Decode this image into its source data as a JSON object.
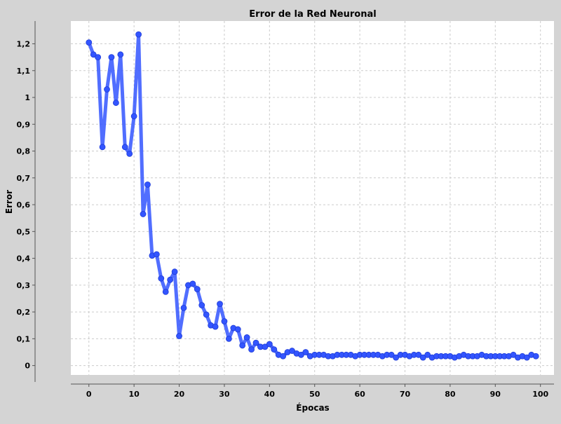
{
  "chart_data": {
    "type": "line",
    "title": "Error de la Red Neuronal",
    "xlabel": "Épocas",
    "ylabel": "Error",
    "xlim": [
      -4,
      103
    ],
    "ylim": [
      -0.035,
      1.285
    ],
    "xticks": [
      0,
      10,
      20,
      30,
      40,
      50,
      60,
      70,
      80,
      90,
      100
    ],
    "xtick_labels": [
      "0",
      "10",
      "20",
      "30",
      "40",
      "50",
      "60",
      "70",
      "80",
      "90",
      "100"
    ],
    "yticks": [
      0,
      0.1,
      0.2,
      0.3,
      0.4,
      0.5,
      0.6,
      0.7,
      0.8,
      0.9,
      1.0,
      1.1,
      1.2
    ],
    "ytick_labels": [
      "0",
      "0,1",
      "0,2",
      "0,3",
      "0,4",
      "0,5",
      "0,6",
      "0,7",
      "0,8",
      "0,9",
      "1",
      "1,1",
      "1,2"
    ],
    "grid": true,
    "series": [
      {
        "color": "#3355ff",
        "x": [
          0,
          1,
          2,
          3,
          4,
          5,
          6,
          7,
          8,
          9,
          10,
          11,
          12,
          13,
          14,
          15,
          16,
          17,
          18,
          19,
          20,
          21,
          22,
          23,
          24,
          25,
          26,
          27,
          28,
          29,
          30,
          31,
          32,
          33,
          34,
          35,
          36,
          37,
          38,
          39,
          40,
          41,
          42,
          43,
          44,
          45,
          46,
          47,
          48,
          49,
          50,
          51,
          52,
          53,
          54,
          55,
          56,
          57,
          58,
          59,
          60,
          61,
          62,
          63,
          64,
          65,
          66,
          67,
          68,
          69,
          70,
          71,
          72,
          73,
          74,
          75,
          76,
          77,
          78,
          79,
          80,
          81,
          82,
          83,
          84,
          85,
          86,
          87,
          88,
          89,
          90,
          91,
          92,
          93,
          94,
          95,
          96,
          97,
          98,
          99
        ],
        "values": [
          1.205,
          1.16,
          1.15,
          0.815,
          1.03,
          1.15,
          0.98,
          1.16,
          0.815,
          0.79,
          0.93,
          1.235,
          0.565,
          0.675,
          0.41,
          0.415,
          0.325,
          0.275,
          0.32,
          0.35,
          0.11,
          0.215,
          0.3,
          0.305,
          0.285,
          0.225,
          0.19,
          0.15,
          0.145,
          0.23,
          0.165,
          0.1,
          0.14,
          0.135,
          0.075,
          0.105,
          0.06,
          0.085,
          0.07,
          0.07,
          0.08,
          0.06,
          0.04,
          0.035,
          0.05,
          0.055,
          0.045,
          0.04,
          0.05,
          0.035,
          0.04,
          0.04,
          0.04,
          0.035,
          0.035,
          0.04,
          0.04,
          0.04,
          0.04,
          0.035,
          0.04,
          0.04,
          0.04,
          0.04,
          0.04,
          0.035,
          0.04,
          0.04,
          0.03,
          0.04,
          0.04,
          0.035,
          0.04,
          0.04,
          0.03,
          0.04,
          0.03,
          0.035,
          0.035,
          0.035,
          0.035,
          0.03,
          0.035,
          0.04,
          0.035,
          0.035,
          0.035,
          0.04,
          0.035,
          0.035,
          0.035,
          0.035,
          0.035,
          0.035,
          0.04,
          0.03,
          0.035,
          0.03,
          0.04,
          0.035
        ]
      }
    ]
  }
}
